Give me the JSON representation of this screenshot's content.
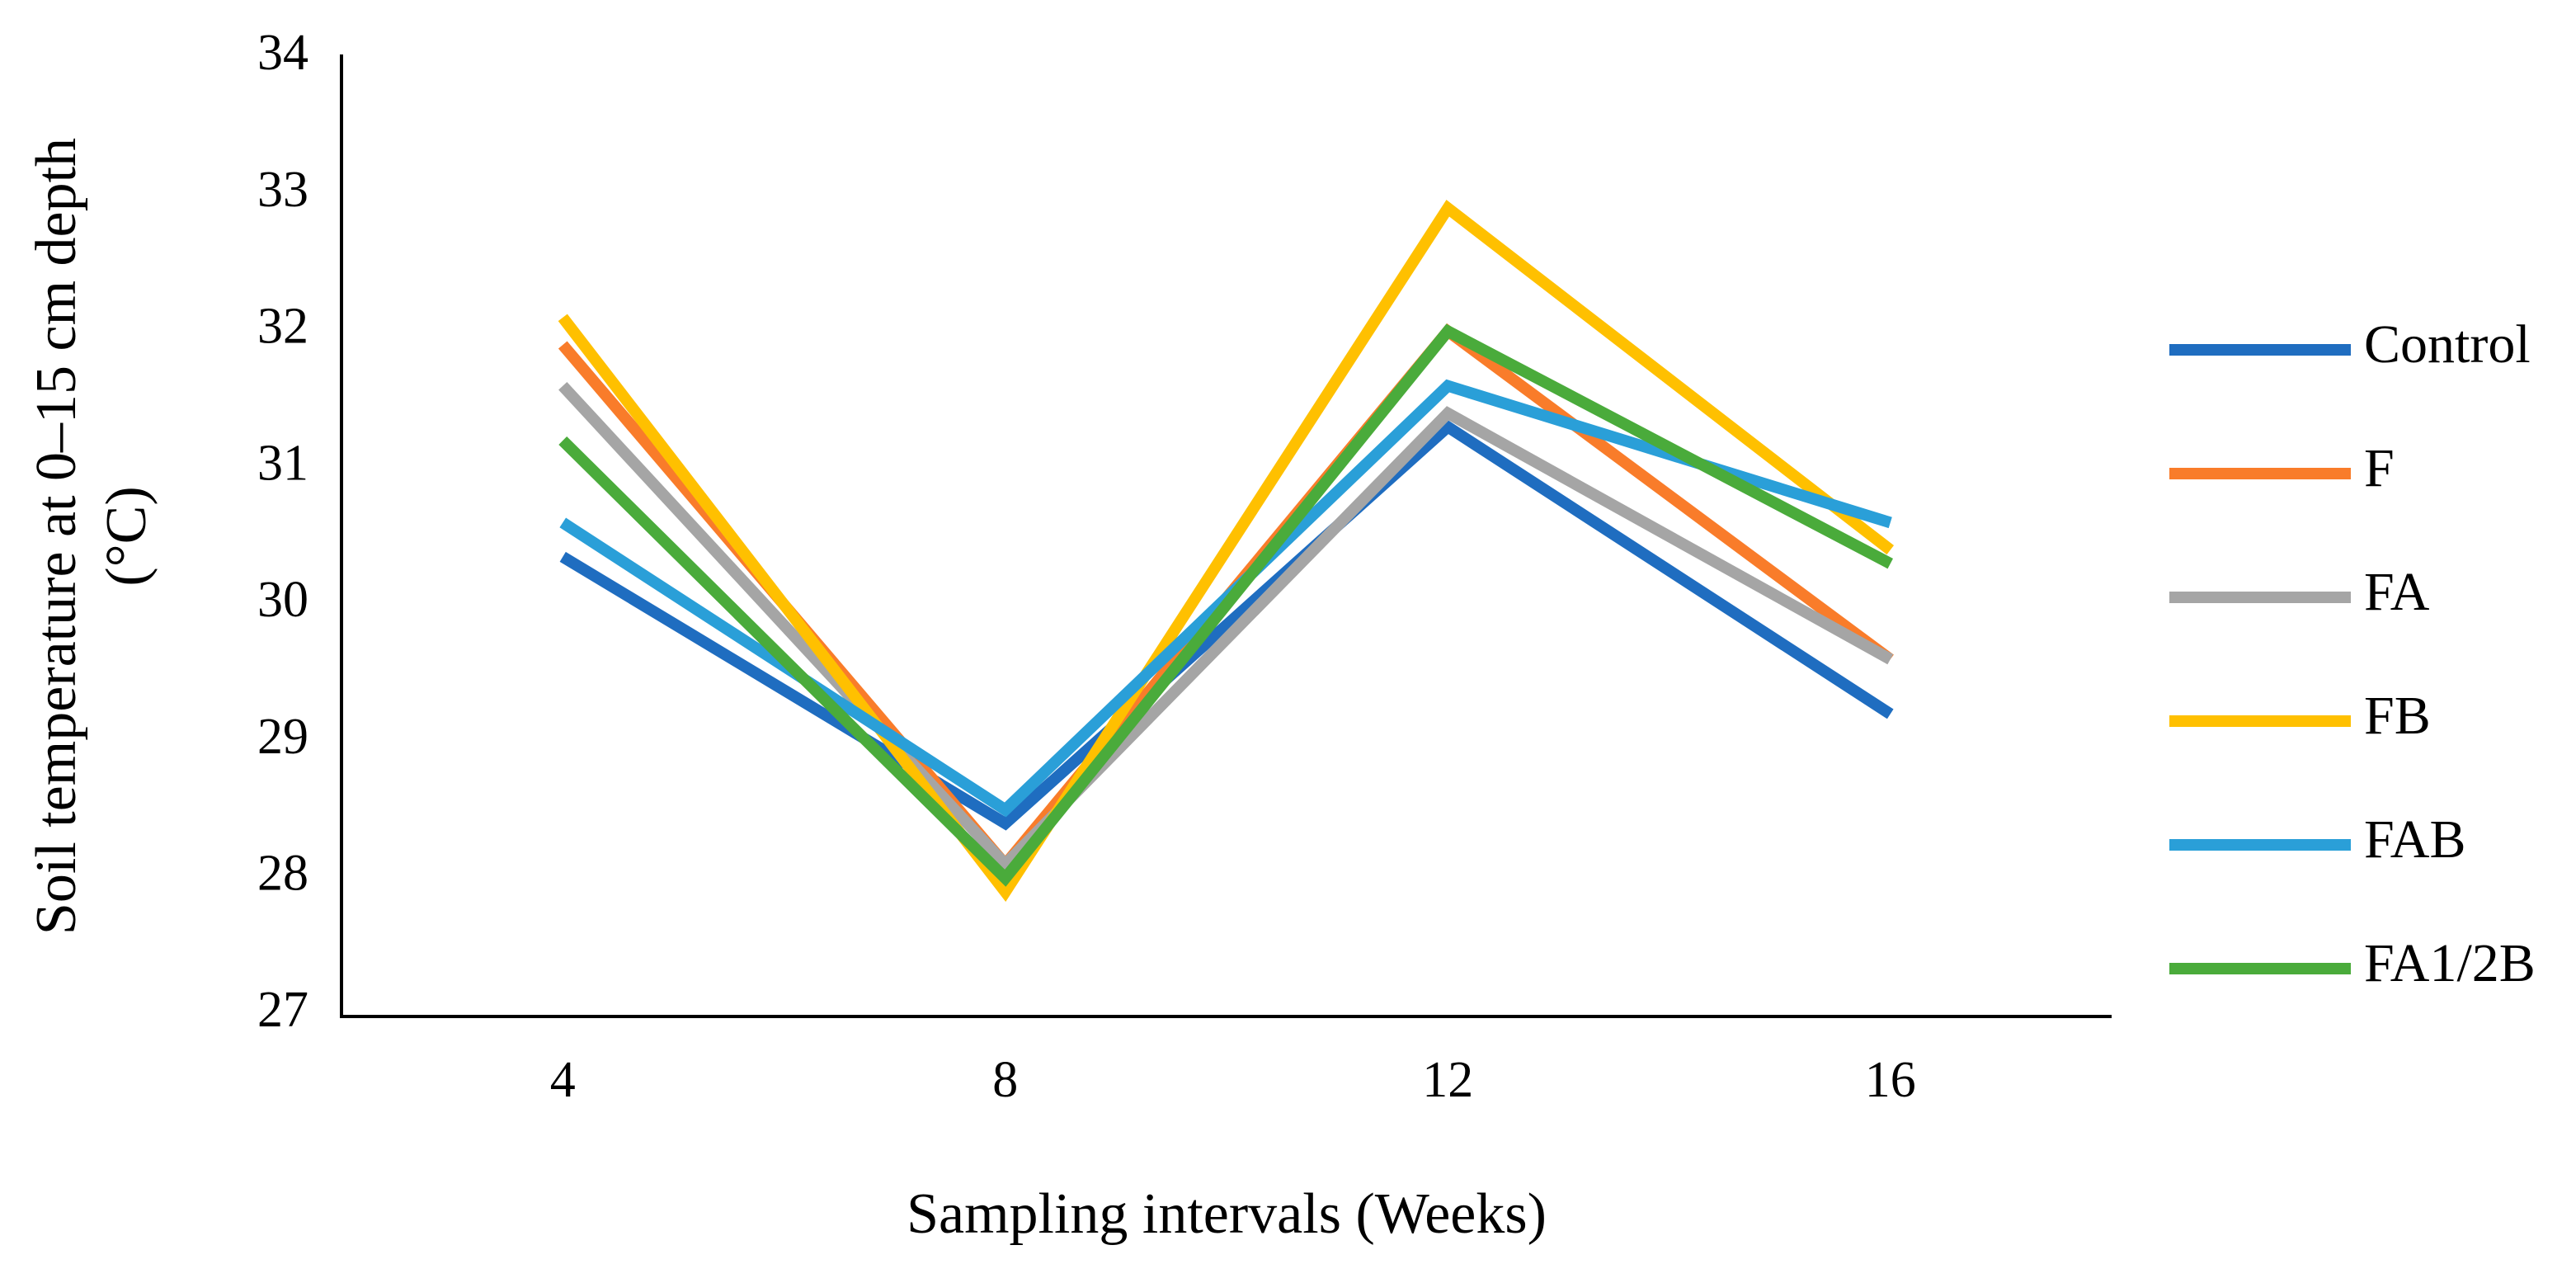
{
  "chart_data": {
    "type": "line",
    "xlabel": "Sampling intervals (Weeks)",
    "ylabel": [
      "Soil temperature at 0–15 cm depth",
      "(°C)"
    ],
    "categories": [
      "4",
      "8",
      "12",
      "16"
    ],
    "series": [
      {
        "name": "Control",
        "color": "#1f6dc0",
        "values": [
          30.35,
          28.4,
          31.3,
          29.2
        ]
      },
      {
        "name": "F",
        "color": "#f97c2a",
        "values": [
          31.9,
          28.1,
          32.0,
          29.6
        ]
      },
      {
        "name": "FA",
        "color": "#a5a5a5",
        "values": [
          31.6,
          28.1,
          31.4,
          29.6
        ]
      },
      {
        "name": "FB",
        "color": "#ffc000",
        "values": [
          32.1,
          27.9,
          32.9,
          30.4
        ]
      },
      {
        "name": "FAB",
        "color": "#2a9fd8",
        "values": [
          30.6,
          28.5,
          31.6,
          30.6
        ]
      },
      {
        "name": "FA1/2B",
        "color": "#4aab3b",
        "values": [
          31.2,
          28.0,
          32.0,
          30.3
        ]
      }
    ],
    "ylim": [
      27,
      34
    ],
    "yticks": [
      27,
      28,
      29,
      30,
      31,
      32,
      33,
      34
    ],
    "grid": false,
    "legend": "right"
  }
}
